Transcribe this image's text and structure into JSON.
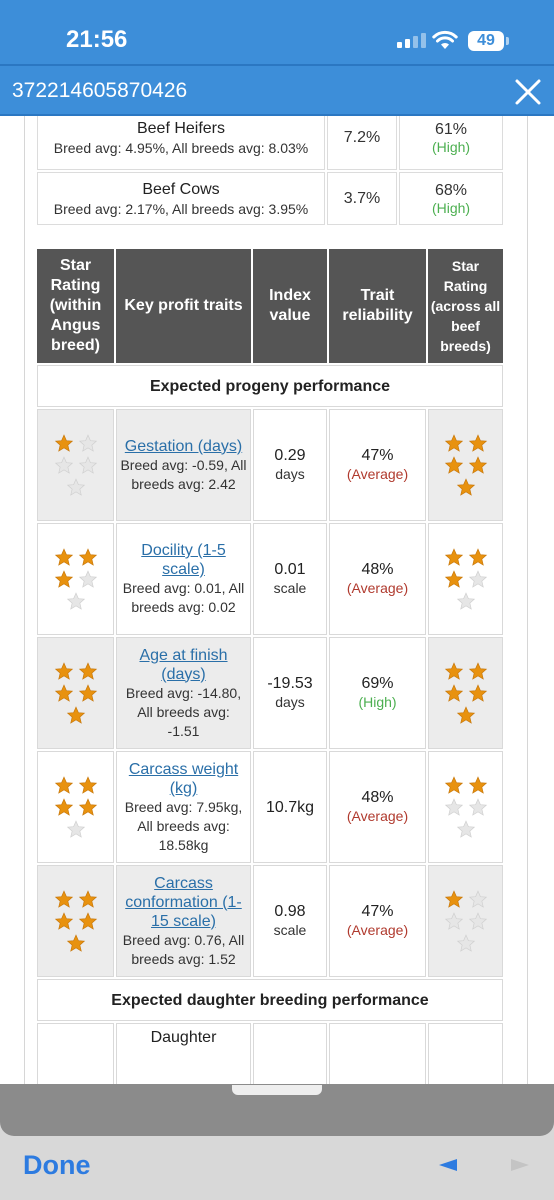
{
  "status": {
    "time": "21:56",
    "battery": "49"
  },
  "nav": {
    "title": "372214605870426"
  },
  "top_rows": [
    {
      "name": "Beef Heifers",
      "avg": "Breed avg: 4.95%, All breeds avg: 8.03%",
      "value": "7.2%",
      "reliability": "61%",
      "label": "(High)"
    },
    {
      "name": "Beef Cows",
      "avg": "Breed avg: 2.17%, All breeds avg: 3.95%",
      "value": "3.7%",
      "reliability": "68%",
      "label": "(High)"
    }
  ],
  "headers": {
    "star_within": "Star Rating (within Angus breed)",
    "traits": "Key profit traits",
    "index": "Index value",
    "reliability": "Trait reliability",
    "star_across": "Star Rating (across all beef breeds)"
  },
  "sections": {
    "progeny": "Expected progeny performance",
    "daughter": "Expected daughter breeding performance"
  },
  "rows": [
    {
      "trait": "Gestation (days)",
      "avg": "Breed avg: -0.59, All breeds avg: 2.42",
      "value": "0.29",
      "unit": "days",
      "reliability": "47%",
      "label": "(Average)",
      "stars_within": 1,
      "stars_across": 5
    },
    {
      "trait": "Docility (1-5 scale)",
      "avg": "Breed avg: 0.01, All breeds avg: 0.02",
      "value": "0.01",
      "unit": "scale",
      "reliability": "48%",
      "label": "(Average)",
      "stars_within": 3,
      "stars_across": 3
    },
    {
      "trait": "Age at finish (days)",
      "avg": "Breed avg: -14.80, All breeds avg: -1.51",
      "value": "-19.53",
      "unit": "days",
      "reliability": "69%",
      "label": "(High)",
      "stars_within": 5,
      "stars_across": 5
    },
    {
      "trait": "Carcass weight (kg)",
      "avg": "Breed avg: 7.95kg, All breeds avg: 18.58kg",
      "value": "10.7kg",
      "unit": "",
      "reliability": "48%",
      "label": "(Average)",
      "stars_within": 4,
      "stars_across": 2
    },
    {
      "trait": "Carcass conformation (1-15 scale)",
      "avg": "Breed avg: 0.76, All breeds avg: 1.52",
      "value": "0.98",
      "unit": "scale",
      "reliability": "47%",
      "label": "(Average)",
      "stars_within": 5,
      "stars_across": 1
    }
  ],
  "partial_row": {
    "trait": "Daughter"
  },
  "toolbar": {
    "done": "Done"
  },
  "colors": {
    "header_blue": "#3d8ed9",
    "star_gold": "#e8920f",
    "star_empty": "#e6e6e6",
    "link": "#2a6fa8",
    "average_red": "#b03a2e",
    "high_green": "#4caf50"
  }
}
